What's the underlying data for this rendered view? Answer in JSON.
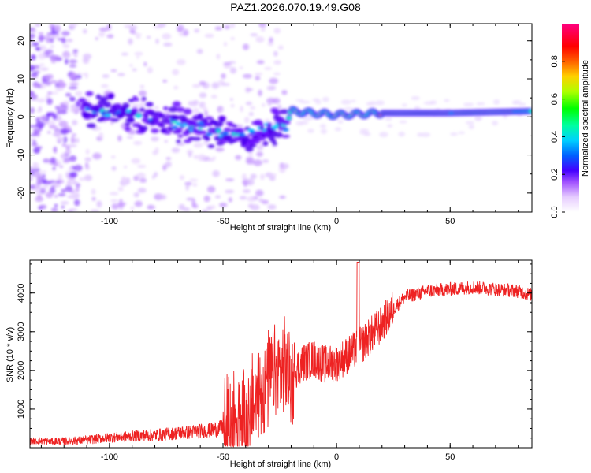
{
  "chart_data": [
    {
      "type": "heatmap",
      "title": "PAZ1.2026.070.19.49.G08",
      "xlabel": "Height of straight line (km)",
      "ylabel": "Frequency (Hz)",
      "xlim": [
        -135,
        86
      ],
      "ylim": [
        -25,
        24.5
      ],
      "xticks": [
        -100,
        -50,
        0,
        50
      ],
      "xtick_labels": [
        "-100",
        "-50",
        "0",
        "50"
      ],
      "yticks": [
        -20,
        -10,
        0,
        10,
        20
      ],
      "ytick_labels": [
        "-20",
        "-10",
        "0",
        "10",
        "20"
      ],
      "colorbar": {
        "label": "Normalized spectral amplitude",
        "range": [
          0,
          1
        ],
        "ticks": [
          0.0,
          0.2,
          0.4,
          0.6,
          0.8
        ],
        "tick_labels": [
          "0.0",
          "0.2",
          "0.4",
          "0.6",
          "0.8"
        ]
      },
      "features": [
        {
          "name": "noise-region",
          "x_range": [
            -135,
            -22
          ],
          "description": "scattered low-amplitude spectral blobs"
        },
        {
          "name": "main-trace",
          "points": [
            [
              -112,
              2.5
            ],
            [
              -100,
              1.5
            ],
            [
              -90,
              1
            ],
            [
              -80,
              -0.5
            ],
            [
              -70,
              -1.5
            ],
            [
              -60,
              -3
            ],
            [
              -50,
              -4
            ],
            [
              -40,
              -5
            ],
            [
              -30,
              -3
            ],
            [
              -22,
              -2
            ],
            [
              -20,
              1.5
            ],
            [
              0,
              0.5
            ],
            [
              20,
              1
            ],
            [
              50,
              1
            ],
            [
              86,
              1.5
            ]
          ]
        }
      ]
    },
    {
      "type": "line",
      "title": "",
      "xlabel": "Height of straight line (km)",
      "ylabel": "SNR (10 * v/v)",
      "xlim": [
        -135,
        86
      ],
      "ylim": [
        0,
        4850
      ],
      "xticks": [
        -100,
        -50,
        0,
        50
      ],
      "xtick_labels": [
        "-100",
        "-50",
        "0",
        "50"
      ],
      "yticks": [
        1000,
        2000,
        3000,
        4000
      ],
      "ytick_labels": [
        "1000",
        "2000",
        "3000",
        "4000"
      ],
      "series": [
        {
          "name": "SNR",
          "color": "#ee2222",
          "x": [
            -135,
            -120,
            -110,
            -100,
            -90,
            -80,
            -70,
            -60,
            -55,
            -50,
            -45,
            -40,
            -35,
            -30,
            -25,
            -20,
            -15,
            -10,
            -5,
            0,
            5,
            10,
            15,
            20,
            25,
            30,
            40,
            50,
            60,
            70,
            80,
            86
          ],
          "values": [
            170,
            170,
            200,
            260,
            300,
            330,
            380,
            430,
            460,
            520,
            650,
            800,
            1300,
            1800,
            2000,
            1900,
            2200,
            2300,
            2150,
            2200,
            2400,
            2600,
            2900,
            3200,
            3600,
            3900,
            4050,
            4100,
            4150,
            4100,
            4050,
            3950
          ]
        }
      ]
    }
  ]
}
